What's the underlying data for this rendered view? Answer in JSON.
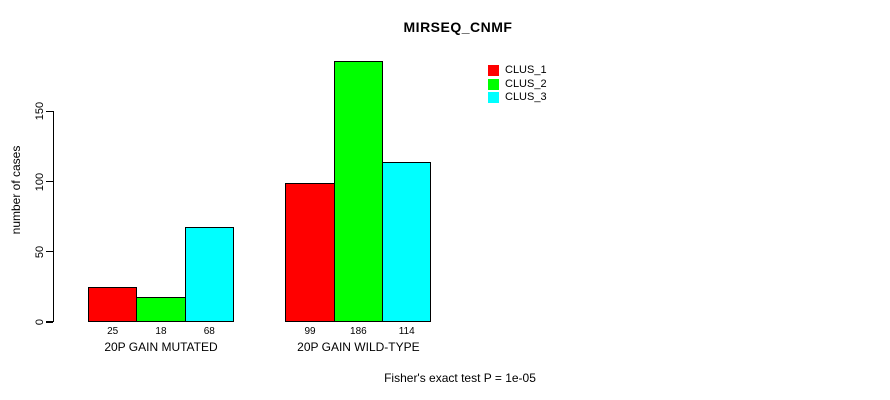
{
  "chart_data": {
    "type": "bar",
    "title": "MIRSEQ_CNMF",
    "ylabel": "number of cases",
    "xlabel": "",
    "categories": [
      "20P GAIN MUTATED",
      "20P GAIN WILD-TYPE"
    ],
    "series": [
      {
        "name": "CLUS_1",
        "color": "#ff0000",
        "values": [
          25,
          99
        ]
      },
      {
        "name": "CLUS_2",
        "color": "#00ff00",
        "values": [
          18,
          186
        ]
      },
      {
        "name": "CLUS_3",
        "color": "#00ffff",
        "values": [
          68,
          114
        ]
      }
    ],
    "yticks": [
      0,
      50,
      100,
      150
    ],
    "ylim": [
      0,
      190
    ],
    "grid": false,
    "legend_position": "top-right",
    "bar_border_color": "#000000",
    "annotation": "Fisher's exact test P = 1e-05"
  },
  "colors": {
    "background": "#ffffff",
    "text": "#000000",
    "axis": "#000000"
  }
}
